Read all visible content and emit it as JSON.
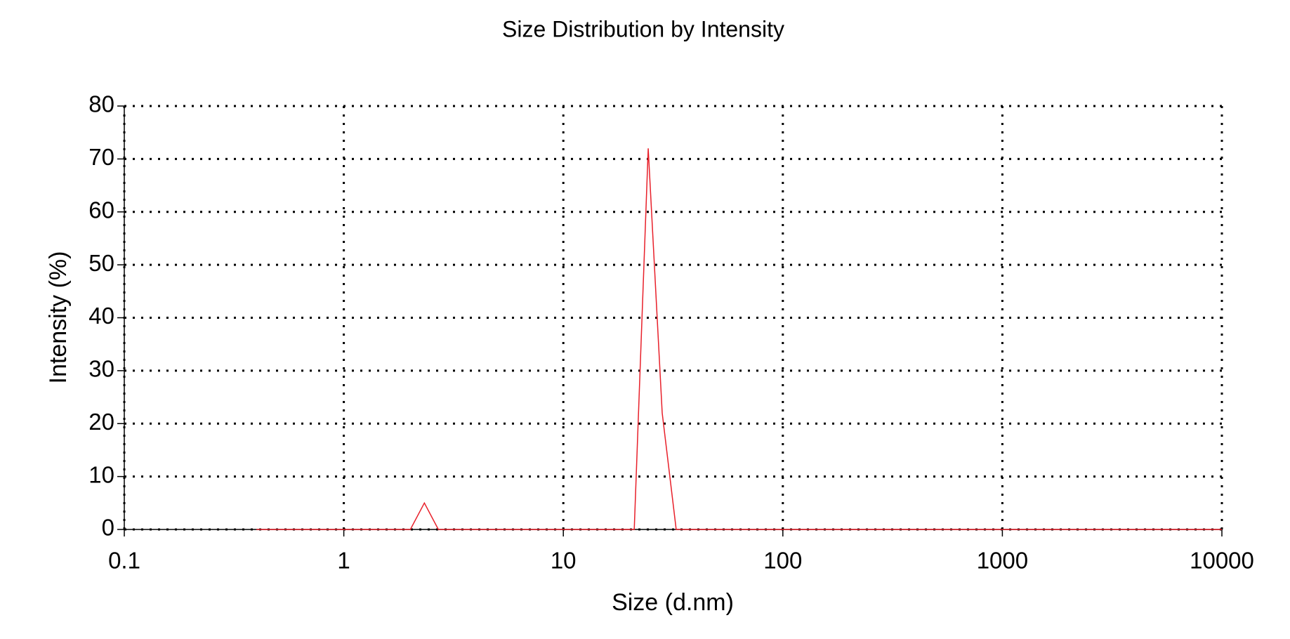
{
  "chart_data": {
    "type": "line",
    "title": "Size Distribution by Intensity",
    "x_label": "Size (d.nm)",
    "y_label": "Intensity (%)",
    "x_scale": "log",
    "grid": true,
    "x": [
      0.4,
      2.01,
      2.328,
      2.696,
      21.04,
      24.36,
      28.21,
      32.67,
      10000
    ],
    "series": [
      {
        "color": "#e8202a",
        "values": [
          0,
          0,
          5,
          0,
          0,
          72,
          22,
          0,
          0
        ]
      }
    ],
    "xlim": [
      0.1,
      10000
    ],
    "xticks": [
      0.1,
      1,
      10,
      100,
      1000,
      10000
    ],
    "ylim": [
      0,
      80
    ],
    "yticks": [
      0,
      10,
      20,
      30,
      40,
      50,
      60,
      70,
      80
    ]
  }
}
